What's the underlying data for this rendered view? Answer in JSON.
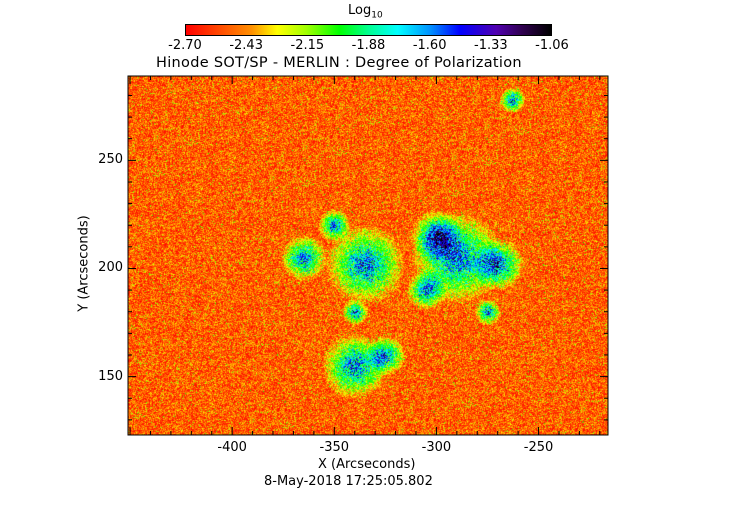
{
  "chart_data": {
    "type": "heatmap",
    "title": "Hinode SOT/SP - MERLIN : Degree of Polarization",
    "xlabel": "X (Arcseconds)",
    "ylabel": "Y (Arcseconds)",
    "subtitle": "8-May-2018 17:25:05.802",
    "xlim": [
      -451,
      -216
    ],
    "ylim": [
      123,
      289
    ],
    "xticks": [
      "-400",
      "-350",
      "-300",
      "-250"
    ],
    "xtick_values": [
      -400,
      -350,
      -300,
      -250
    ],
    "yticks": [
      "250",
      "200",
      "150"
    ],
    "ytick_values": [
      250,
      200,
      150
    ],
    "colorbar": {
      "label": "Log",
      "label_sub": "10",
      "range": [
        -2.7,
        -1.06
      ],
      "ticks": [
        "-2.70",
        "-2.43",
        "-2.15",
        "-1.88",
        "-1.60",
        "-1.33",
        "-1.06"
      ]
    },
    "strong_regions": [
      {
        "x": -335,
        "y": 202,
        "r": 12
      },
      {
        "x": -365,
        "y": 205,
        "r": 7
      },
      {
        "x": -290,
        "y": 205,
        "r": 14
      },
      {
        "x": -300,
        "y": 215,
        "r": 8
      },
      {
        "x": -270,
        "y": 202,
        "r": 8
      },
      {
        "x": -340,
        "y": 155,
        "r": 10
      },
      {
        "x": -325,
        "y": 160,
        "r": 6
      },
      {
        "x": -263,
        "y": 278,
        "r": 4
      },
      {
        "x": -305,
        "y": 190,
        "r": 6
      },
      {
        "x": -350,
        "y": 220,
        "r": 5
      },
      {
        "x": -340,
        "y": 180,
        "r": 4
      },
      {
        "x": -275,
        "y": 180,
        "r": 4
      }
    ]
  }
}
